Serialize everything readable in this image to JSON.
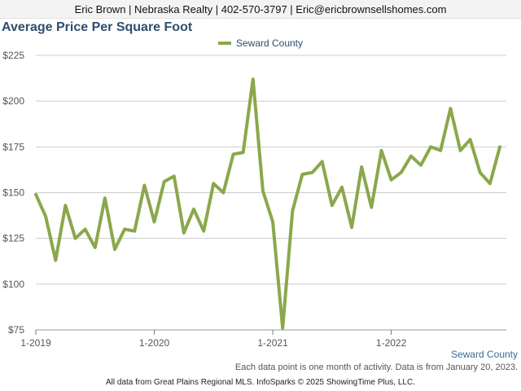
{
  "header": {
    "contact": "Eric Brown | Nebraska Realty | 402-570-3797 | Eric@ericbrownsellshomes.com"
  },
  "footer": {
    "note": "Each data point is one month of activity. Data is from January 20, 2023.",
    "source": "All data from Great Plains Regional MLS. InfoSparks © 2025 ShowingTime Plus, LLC.",
    "series_caption": "Seward County"
  },
  "colors": {
    "series": "#8aa84b",
    "title": "#2e4e6e",
    "grid": "#cccccc"
  },
  "chart_data": {
    "type": "line",
    "title": "Average Price Per Square Foot",
    "xlabel": "",
    "ylabel": "",
    "ylim": [
      75,
      225
    ],
    "yticks": [
      75,
      100,
      125,
      150,
      175,
      200,
      225
    ],
    "ytick_labels": [
      "$75",
      "$100",
      "$125",
      "$150",
      "$175",
      "$200",
      "$225"
    ],
    "xtick_labels": [
      {
        "label": "1-2019",
        "index": 0
      },
      {
        "label": "1-2020",
        "index": 12
      },
      {
        "label": "1-2021",
        "index": 24
      },
      {
        "label": "1-2022",
        "index": 36
      }
    ],
    "grid": true,
    "legend_position": "top-center",
    "x": [
      "2019-01",
      "2019-02",
      "2019-03",
      "2019-04",
      "2019-05",
      "2019-06",
      "2019-07",
      "2019-08",
      "2019-09",
      "2019-10",
      "2019-11",
      "2019-12",
      "2020-01",
      "2020-02",
      "2020-03",
      "2020-04",
      "2020-05",
      "2020-06",
      "2020-07",
      "2020-08",
      "2020-09",
      "2020-10",
      "2020-11",
      "2020-12",
      "2021-01",
      "2021-02",
      "2021-03",
      "2021-04",
      "2021-05",
      "2021-06",
      "2021-07",
      "2021-08",
      "2021-09",
      "2021-10",
      "2021-11",
      "2021-12",
      "2022-01",
      "2022-02",
      "2022-03",
      "2022-04",
      "2022-05",
      "2022-06",
      "2022-07",
      "2022-08",
      "2022-09",
      "2022-10",
      "2022-11",
      "2022-12"
    ],
    "series": [
      {
        "name": "Seward County",
        "values": [
          149,
          137,
          113,
          143,
          125,
          130,
          120,
          147,
          119,
          130,
          129,
          154,
          134,
          156,
          159,
          128,
          141,
          129,
          155,
          150,
          171,
          172,
          212,
          151,
          134,
          76,
          140,
          160,
          161,
          167,
          143,
          153,
          131,
          164,
          142,
          173,
          157,
          161,
          170,
          165,
          175,
          173,
          196,
          173,
          179,
          161,
          155,
          175
        ]
      }
    ]
  }
}
